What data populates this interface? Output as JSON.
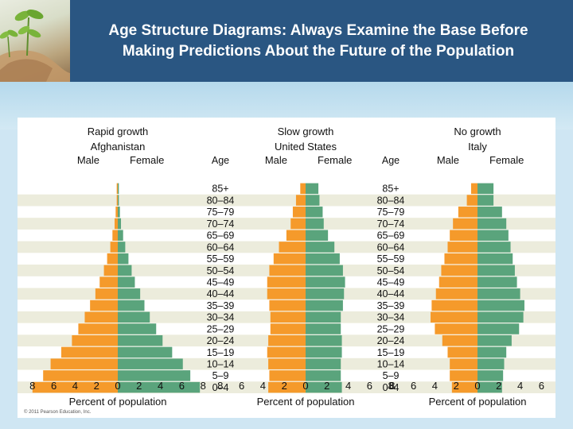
{
  "header": {
    "title_line1": "Age Structure Diagrams: Always Examine the Base Before",
    "title_line2": "Making Predictions About the Future of the Population"
  },
  "credit": "© 2011 Pearson Education, Inc.",
  "colors": {
    "male": "#f59a2b",
    "female": "#5aa47c",
    "stripe": "#ececdc",
    "header": "#2a5682"
  },
  "chart_data": [
    {
      "type": "bar",
      "subtitle": "Rapid growth",
      "title": "Afghanistan",
      "left_label": "Male",
      "right_label": "Female",
      "xlabel": "Percent of population",
      "xticks": [
        "8",
        "6",
        "4",
        "2",
        "0",
        "2",
        "4",
        "6",
        "8"
      ],
      "xlim": [
        -8,
        8
      ],
      "categories": [
        "85+",
        "80–84",
        "75–79",
        "70–74",
        "65–69",
        "60–64",
        "55–59",
        "50–54",
        "45–49",
        "40–44",
        "35–39",
        "30–34",
        "25–29",
        "20–24",
        "15–19",
        "10–14",
        "5–9",
        "0–4"
      ],
      "series": [
        {
          "name": "Male",
          "values": [
            0.1,
            0.1,
            0.2,
            0.3,
            0.5,
            0.7,
            1.0,
            1.3,
            1.7,
            2.1,
            2.6,
            3.1,
            3.7,
            4.3,
            5.3,
            6.3,
            7.0,
            8.0
          ]
        },
        {
          "name": "Female",
          "values": [
            0.1,
            0.1,
            0.2,
            0.3,
            0.5,
            0.7,
            1.0,
            1.3,
            1.6,
            2.1,
            2.5,
            3.0,
            3.6,
            4.2,
            5.1,
            6.1,
            6.8,
            7.7
          ]
        }
      ]
    },
    {
      "type": "bar",
      "subtitle": "Slow growth",
      "title": "United States",
      "left_label": "Male",
      "right_label": "Female",
      "xlabel": "Percent of population",
      "xticks": [
        "8",
        "6",
        "4",
        "2",
        "0",
        "2",
        "4",
        "6",
        "8"
      ],
      "xlim": [
        -8,
        8
      ],
      "categories": [
        "85+",
        "80–84",
        "75–79",
        "70–74",
        "65–69",
        "60–64",
        "55–59",
        "50–54",
        "45–49",
        "40–44",
        "35–39",
        "30–34",
        "25–29",
        "20–24",
        "15–19",
        "10–14",
        "5–9",
        "0–4"
      ],
      "series": [
        {
          "name": "Male",
          "values": [
            0.5,
            0.9,
            1.2,
            1.4,
            1.8,
            2.5,
            3.0,
            3.4,
            3.6,
            3.6,
            3.4,
            3.3,
            3.3,
            3.5,
            3.6,
            3.5,
            3.4,
            3.5
          ]
        },
        {
          "name": "Female",
          "values": [
            1.2,
            1.3,
            1.6,
            1.7,
            2.1,
            2.7,
            3.2,
            3.5,
            3.7,
            3.6,
            3.5,
            3.3,
            3.3,
            3.4,
            3.4,
            3.3,
            3.3,
            3.4
          ]
        }
      ]
    },
    {
      "type": "bar",
      "subtitle": "No growth",
      "title": "Italy",
      "left_label": "Male",
      "right_label": "Female",
      "xlabel": "Percent of population",
      "xticks": [
        "8",
        "6",
        "4",
        "2",
        "0",
        "2",
        "4",
        "6",
        "8"
      ],
      "xlim": [
        -8,
        8
      ],
      "categories": [
        "85+",
        "80–84",
        "75–79",
        "70–74",
        "65–69",
        "60–64",
        "55–59",
        "50–54",
        "45–49",
        "40–44",
        "35–39",
        "30–34",
        "25–29",
        "20–24",
        "15–19",
        "10–14",
        "5–9",
        "0–4"
      ],
      "series": [
        {
          "name": "Male",
          "values": [
            0.6,
            1.0,
            1.8,
            2.3,
            2.6,
            2.8,
            3.1,
            3.4,
            3.6,
            3.9,
            4.3,
            4.4,
            4.0,
            3.3,
            2.8,
            2.6,
            2.6,
            2.4
          ]
        },
        {
          "name": "Female",
          "values": [
            1.5,
            1.5,
            2.3,
            2.7,
            2.9,
            3.1,
            3.3,
            3.5,
            3.7,
            4.0,
            4.4,
            4.3,
            3.9,
            3.2,
            2.7,
            2.5,
            2.4,
            2.3
          ]
        }
      ]
    }
  ]
}
